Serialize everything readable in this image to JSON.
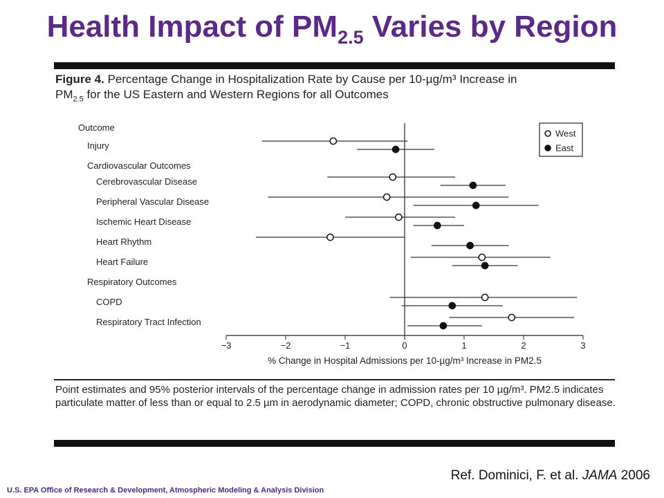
{
  "slide": {
    "title_main": "Health Impact of PM",
    "title_sub": "2.5",
    "title_rest": " Varies by Region",
    "figure_label": "Figure 4.",
    "figure_caption_1": " Percentage Change in Hospitalization Rate by Cause per 10-µg/m³ Increase in",
    "figure_caption_pm": "PM",
    "figure_caption_pm_sub": "2.5",
    "figure_caption_2": " for the US Eastern and Western Regions for all Outcomes",
    "footnote": "Point estimates and 95% posterior intervals of the percentage change in admission rates per 10 µg/m³. PM2.5 indicates particulate matter of less than or equal to 2.5 µm in aerodynamic diameter; COPD, chronic obstructive pulmonary disease.",
    "reference_prefix": "Ref.  Dominici, F. et al. ",
    "reference_journal": "JAMA",
    "reference_year": " 2006",
    "agency": "U.S. EPA Office of Research & Development, Atmospheric Modeling & Analysis Division"
  },
  "chart_data": {
    "type": "scatter",
    "subtype": "forest-plot",
    "header_label": "Outcome",
    "xlabel": "% Change in Hospital Admissions per 10-µg/m³ Increase in PM2.5",
    "xlim": [
      -3,
      3
    ],
    "xticks": [
      -3,
      -2,
      -1,
      0,
      1,
      2,
      3
    ],
    "legend_position": "top-right",
    "legend": [
      {
        "name": "West",
        "marker": "open-circle"
      },
      {
        "name": "East",
        "marker": "filled-circle"
      }
    ],
    "rows": [
      {
        "label": "Injury",
        "indent": 1,
        "estimates": [
          {
            "region": "West",
            "est": -1.2,
            "lo": -2.4,
            "hi": 0.05
          },
          {
            "region": "East",
            "est": -0.15,
            "lo": -0.8,
            "hi": 0.5
          }
        ]
      },
      {
        "label": "Cardiovascular Outcomes",
        "indent": 1,
        "estimates": []
      },
      {
        "label": "Cerebrovascular Disease",
        "indent": 2,
        "estimates": [
          {
            "region": "West",
            "est": -0.2,
            "lo": -1.3,
            "hi": 0.85
          },
          {
            "region": "East",
            "est": 1.15,
            "lo": 0.6,
            "hi": 1.7
          }
        ]
      },
      {
        "label": "Peripheral Vascular Disease",
        "indent": 2,
        "estimates": [
          {
            "region": "West",
            "est": -0.3,
            "lo": -2.3,
            "hi": 1.75
          },
          {
            "region": "East",
            "est": 1.2,
            "lo": 0.15,
            "hi": 2.25
          }
        ]
      },
      {
        "label": "Ischemic Heart Disease",
        "indent": 2,
        "estimates": [
          {
            "region": "West",
            "est": -0.1,
            "lo": -1.0,
            "hi": 0.85
          },
          {
            "region": "East",
            "est": 0.55,
            "lo": 0.15,
            "hi": 1.0
          }
        ]
      },
      {
        "label": "Heart Rhythm",
        "indent": 2,
        "estimates": [
          {
            "region": "West",
            "est": -1.25,
            "lo": -2.5,
            "hi": 0.0
          },
          {
            "region": "East",
            "est": 1.1,
            "lo": 0.45,
            "hi": 1.75
          }
        ]
      },
      {
        "label": "Heart Failure",
        "indent": 2,
        "estimates": [
          {
            "region": "West",
            "est": 1.3,
            "lo": 0.1,
            "hi": 2.45
          },
          {
            "region": "East",
            "est": 1.35,
            "lo": 0.8,
            "hi": 1.9
          }
        ]
      },
      {
        "label": "Respiratory Outcomes",
        "indent": 1,
        "estimates": []
      },
      {
        "label": "COPD",
        "indent": 2,
        "estimates": [
          {
            "region": "West",
            "est": 1.35,
            "lo": -0.25,
            "hi": 2.9
          },
          {
            "region": "East",
            "est": 0.8,
            "lo": -0.05,
            "hi": 1.65
          }
        ]
      },
      {
        "label": "Respiratory Tract Infection",
        "indent": 2,
        "estimates": [
          {
            "region": "West",
            "est": 1.8,
            "lo": 0.75,
            "hi": 2.85
          },
          {
            "region": "East",
            "est": 0.65,
            "lo": 0.05,
            "hi": 1.3
          }
        ]
      }
    ]
  }
}
